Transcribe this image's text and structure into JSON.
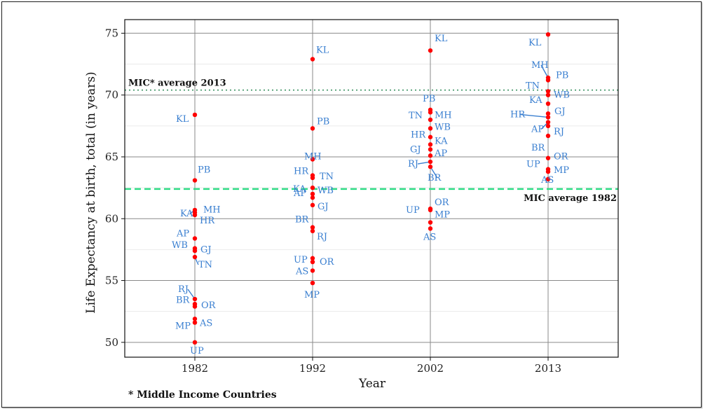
{
  "chart_data": {
    "type": "scatter",
    "xlabel": "Year",
    "ylabel": "Life Expectancy at birth, total (in years)",
    "categories": [
      "1982",
      "1992",
      "2002",
      "2013"
    ],
    "ylim": [
      48.8,
      76.1
    ],
    "yticks": [
      50,
      55,
      60,
      65,
      70,
      75
    ],
    "grid": true,
    "point_color": "#ff0000",
    "label_color": "#3a7fd0",
    "reference_lines": [
      {
        "label": "MIC* average 2013",
        "value": 70.4,
        "style": "dotted",
        "color": "#2e8b57"
      },
      {
        "label": "MIC average 1982",
        "value": 62.4,
        "style": "dashed",
        "color": "#33dd88"
      }
    ],
    "footnote": "* Middle Income Countries",
    "series": [
      {
        "category": "1982",
        "points": [
          {
            "state": "KL",
            "value": 68.4
          },
          {
            "state": "PB",
            "value": 63.1
          },
          {
            "state": "KA",
            "value": 60.7
          },
          {
            "state": "MH",
            "value": 60.5
          },
          {
            "state": "HR",
            "value": 60.3
          },
          {
            "state": "AP",
            "value": 58.4
          },
          {
            "state": "GJ",
            "value": 57.6
          },
          {
            "state": "WB",
            "value": 57.4
          },
          {
            "state": "TN",
            "value": 56.9
          },
          {
            "state": "RJ",
            "value": 53.5
          },
          {
            "state": "OR",
            "value": 53.1
          },
          {
            "state": "BR",
            "value": 52.9
          },
          {
            "state": "AS",
            "value": 51.9
          },
          {
            "state": "MP",
            "value": 51.6
          },
          {
            "state": "UP",
            "value": 50.0
          }
        ]
      },
      {
        "category": "1992",
        "points": [
          {
            "state": "KL",
            "value": 72.9
          },
          {
            "state": "PB",
            "value": 67.3
          },
          {
            "state": "MH",
            "value": 64.8
          },
          {
            "state": "HR",
            "value": 63.5
          },
          {
            "state": "TN",
            "value": 63.3
          },
          {
            "state": "KA",
            "value": 62.5
          },
          {
            "state": "WB",
            "value": 62.0
          },
          {
            "state": "AP",
            "value": 61.7
          },
          {
            "state": "GJ",
            "value": 61.1
          },
          {
            "state": "BR",
            "value": 59.3
          },
          {
            "state": "RJ",
            "value": 59.0
          },
          {
            "state": "UP",
            "value": 56.8
          },
          {
            "state": "OR",
            "value": 56.5
          },
          {
            "state": "AS",
            "value": 55.8
          },
          {
            "state": "MP",
            "value": 54.8
          }
        ]
      },
      {
        "category": "2002",
        "points": [
          {
            "state": "KL",
            "value": 73.6
          },
          {
            "state": "PB",
            "value": 68.8
          },
          {
            "state": "MH",
            "value": 68.6
          },
          {
            "state": "TN",
            "value": 68.0
          },
          {
            "state": "WB",
            "value": 67.3
          },
          {
            "state": "HR",
            "value": 66.6
          },
          {
            "state": "KA",
            "value": 66.0
          },
          {
            "state": "GJ",
            "value": 65.6
          },
          {
            "state": "AP",
            "value": 65.1
          },
          {
            "state": "RJ",
            "value": 64.6
          },
          {
            "state": "BR",
            "value": 64.2
          },
          {
            "state": "OR",
            "value": 60.8
          },
          {
            "state": "UP",
            "value": 60.7
          },
          {
            "state": "MP",
            "value": 59.7
          },
          {
            "state": "AS",
            "value": 59.2
          }
        ]
      },
      {
        "category": "2013",
        "points": [
          {
            "state": "KL",
            "value": 74.9
          },
          {
            "state": "MH",
            "value": 71.4
          },
          {
            "state": "PB",
            "value": 71.2
          },
          {
            "state": "TN",
            "value": 70.3
          },
          {
            "state": "WB",
            "value": 70.0
          },
          {
            "state": "KA",
            "value": 69.3
          },
          {
            "state": "GJ",
            "value": 68.5
          },
          {
            "state": "HR",
            "value": 68.2
          },
          {
            "state": "AP",
            "value": 67.8
          },
          {
            "state": "RJ",
            "value": 67.5
          },
          {
            "state": "BR",
            "value": 66.7
          },
          {
            "state": "OR",
            "value": 64.9
          },
          {
            "state": "UP",
            "value": 64.0
          },
          {
            "state": "MP",
            "value": 63.8
          },
          {
            "state": "AS",
            "value": 63.2
          }
        ]
      }
    ]
  }
}
